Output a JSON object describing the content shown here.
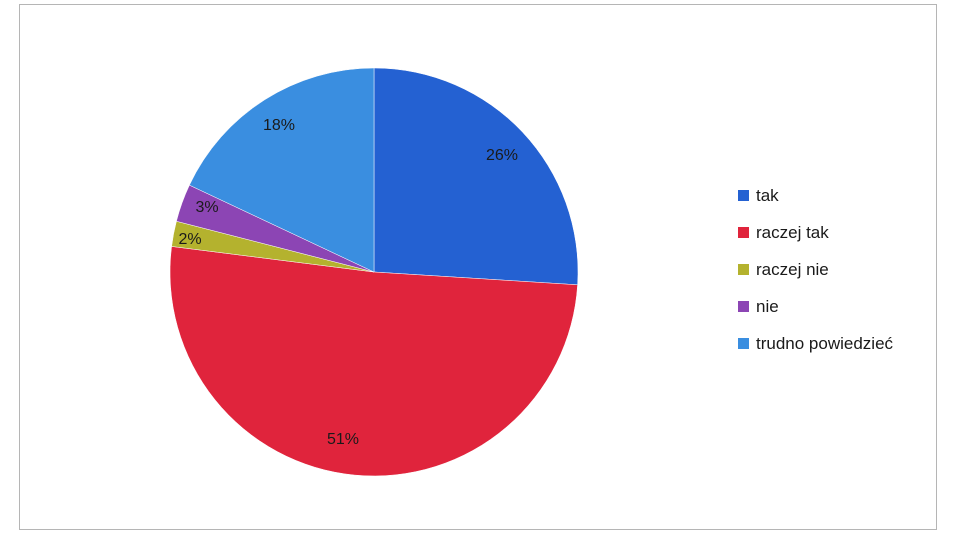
{
  "chart_data": {
    "type": "pie",
    "categories": [
      "tak",
      "raczej tak",
      "raczej nie",
      "nie",
      "trudno powiedzieć"
    ],
    "values": [
      26,
      51,
      2,
      3,
      18
    ],
    "labels": [
      "26%",
      "51%",
      "2%",
      "3%",
      "18%"
    ],
    "colors": [
      "#2461d2",
      "#e0243c",
      "#b4b22e",
      "#8c45b4",
      "#3a8ee0"
    ],
    "start_angle_deg": 0,
    "direction": "clockwise",
    "legend_position": "right",
    "title": ""
  }
}
